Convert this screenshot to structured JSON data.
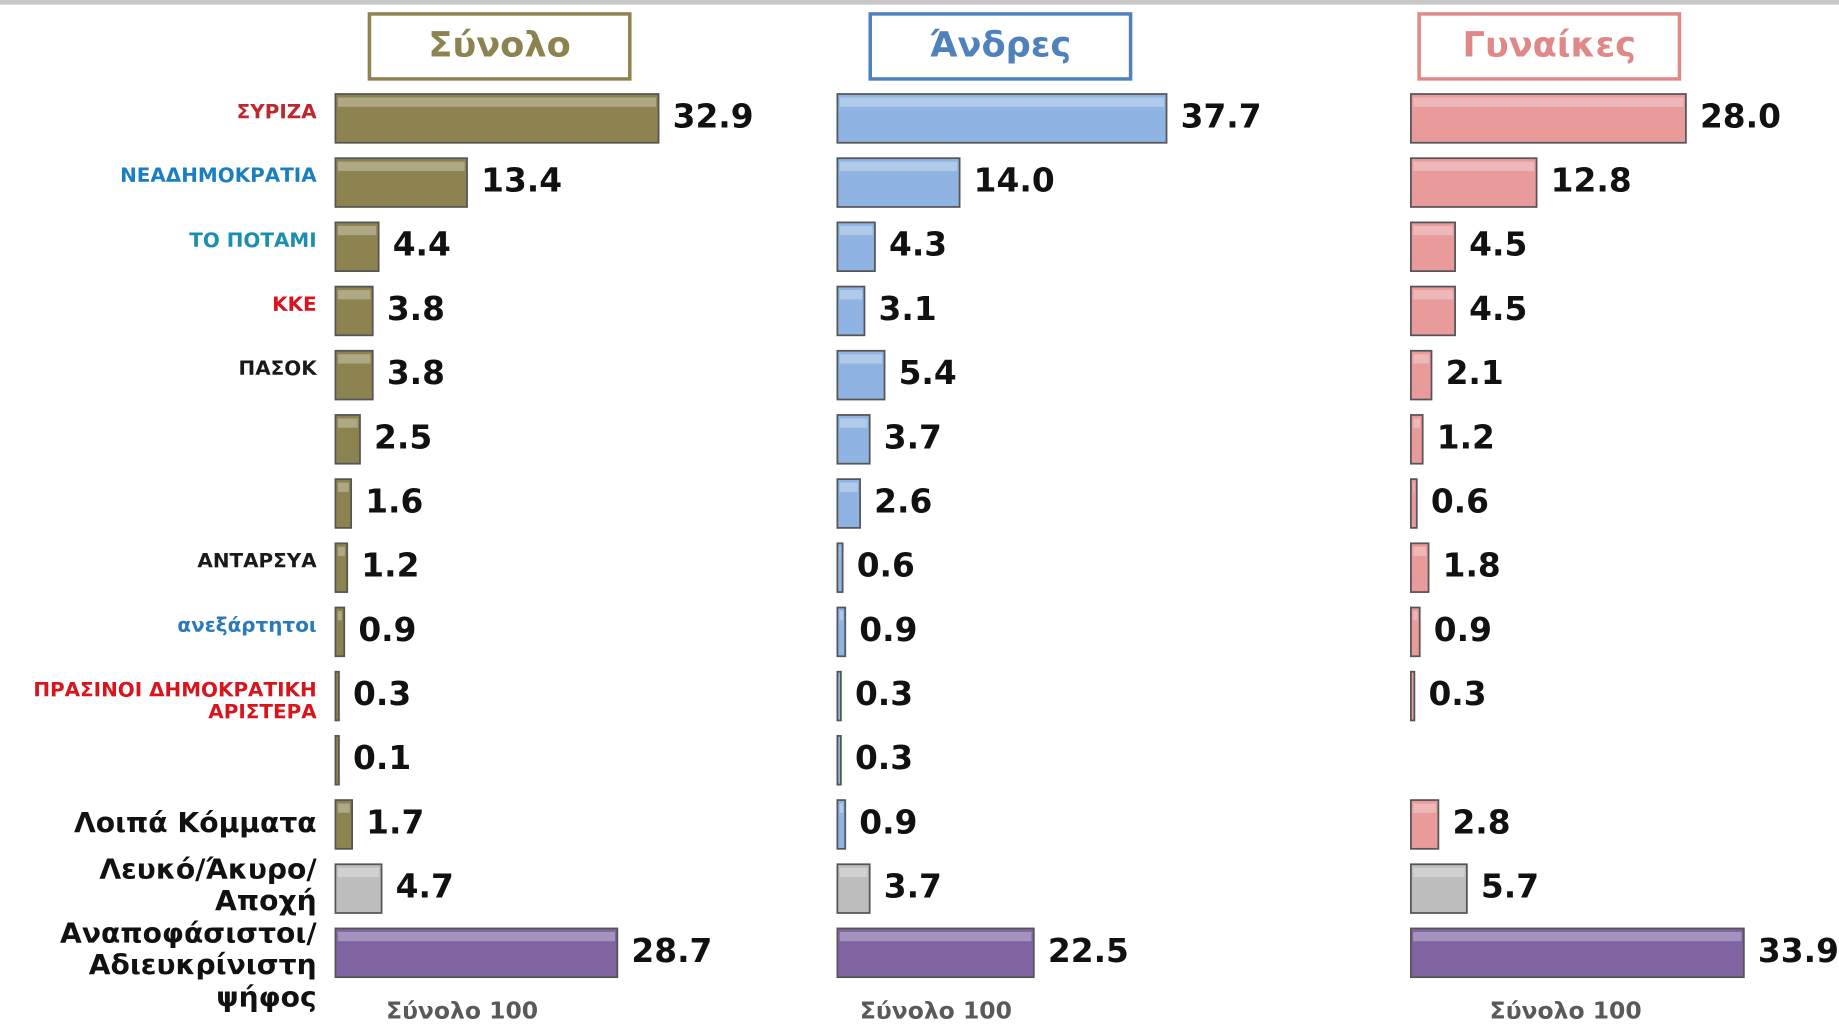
{
  "chart_data": {
    "type": "bar",
    "orientation": "horizontal",
    "categories": [
      "ΣΥΡΙΖΑ",
      "ΝΕΑΔΗΜΟΚΡΑΤΙΑ",
      "ΤΟ ΠΟΤΑΜΙ",
      "ΚΚΕ",
      "ΠΑΣΟΚ",
      null,
      null,
      "ΑΝΤΑΡΣΥΑ",
      "ανεξάρτητοι",
      "ΠΡΑΣΙΝΟΙ ΔΗΜΟΚΡΑΤΙΚΗ ΑΡΙΣΤΕΡΑ",
      null,
      "Λοιπά Κόμματα",
      "Λευκό/Άκυρο/\nΑποχή",
      "Αναποφάσιστοι/\nΑδιευκρίνιστη ψήφος"
    ],
    "label_colors": [
      "#c0262d",
      "#1a7fc1",
      "#1a8fb0",
      "#d8141c",
      "#1a1a1a",
      "#e2141c",
      "#8a7a3a",
      "#1a1a1a",
      "#2a7ab8",
      "#d8141c",
      "#1e4fa0",
      "#111111",
      "#111111",
      "#111111"
    ],
    "series": [
      {
        "name": "Σύνολο",
        "color": "#8c8350",
        "title_color": "#8c8350",
        "total_label": "Σύνολο 100",
        "xlim": [
          0,
          40
        ],
        "values": [
          32.9,
          13.4,
          4.4,
          3.8,
          3.8,
          2.5,
          1.6,
          1.2,
          0.9,
          0.3,
          0.1,
          1.7,
          4.7,
          28.7
        ],
        "value_labels": [
          "32.9",
          "13.4",
          "4.4",
          "3.8",
          "3.8",
          "2.5",
          "1.6",
          "1.2",
          "0.9",
          "0.3",
          "0.1",
          "1.7",
          "4.7",
          "28.7"
        ],
        "colors": [
          "#8c8350",
          "#8c8350",
          "#8c8350",
          "#8c8350",
          "#8c8350",
          "#8c8350",
          "#8c8350",
          "#8c8350",
          "#8c8350",
          "#8c8350",
          "#8c8350",
          "#8c8350",
          "#bdbdbd",
          "#8064a2"
        ]
      },
      {
        "name": "Άνδρες",
        "color": "#8fb4e3",
        "title_color": "#4f81bd",
        "total_label": "Σύνολο 100",
        "xlim": [
          0,
          45
        ],
        "values": [
          37.7,
          14.0,
          4.3,
          3.1,
          5.4,
          3.7,
          2.6,
          0.6,
          0.9,
          0.3,
          0.3,
          0.9,
          3.7,
          22.5
        ],
        "value_labels": [
          "37.7",
          "14.0",
          "4.3",
          "3.1",
          "5.4",
          "3.7",
          "2.6",
          "0.6",
          "0.9",
          "0.3",
          "0.3",
          "0.9",
          "3.7",
          "22.5"
        ],
        "colors": [
          "#8fb4e3",
          "#8fb4e3",
          "#8fb4e3",
          "#8fb4e3",
          "#8fb4e3",
          "#8fb4e3",
          "#8fb4e3",
          "#8fb4e3",
          "#8fb4e3",
          "#8fb4e3",
          "#8fb4e3",
          "#8fb4e3",
          "#bdbdbd",
          "#8064a2"
        ]
      },
      {
        "name": "Γυναίκες",
        "color": "#e99a9a",
        "title_color": "#e08888",
        "total_label": "Σύνολο 100",
        "xlim": [
          0,
          40
        ],
        "values": [
          28.0,
          12.8,
          4.5,
          4.5,
          2.1,
          1.2,
          0.6,
          1.8,
          0.9,
          0.3,
          null,
          2.8,
          5.7,
          33.9
        ],
        "value_labels": [
          "28.0",
          "12.8",
          "4.5",
          "4.5",
          "2.1",
          "1.2",
          "0.6",
          "1.8",
          "0.9",
          "0.3",
          null,
          "2.8",
          "5.7",
          "33.9"
        ],
        "colors": [
          "#e99a9a",
          "#e99a9a",
          "#e99a9a",
          "#e99a9a",
          "#e99a9a",
          "#e99a9a",
          "#e99a9a",
          "#e99a9a",
          "#e99a9a",
          "#e99a9a",
          "#e99a9a",
          "#e99a9a",
          "#bdbdbd",
          "#8064a2"
        ]
      }
    ]
  }
}
